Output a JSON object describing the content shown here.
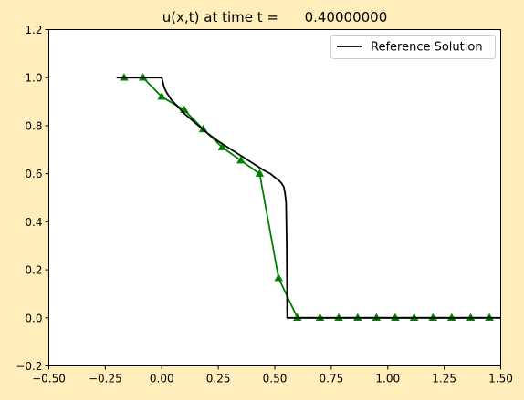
{
  "chart_data": {
    "type": "line",
    "title": "u(x,t) at time t =      0.40000000",
    "xlabel": "",
    "ylabel": "",
    "xlim": [
      -0.5,
      1.5
    ],
    "ylim": [
      -0.2,
      1.2
    ],
    "xticks": [
      -0.5,
      -0.25,
      0.0,
      0.25,
      0.5,
      0.75,
      1.0,
      1.25,
      1.5
    ],
    "xtick_labels": [
      "−0.50",
      "−0.25",
      "0.00",
      "0.25",
      "0.50",
      "0.75",
      "1.00",
      "1.25",
      "1.50"
    ],
    "yticks": [
      -0.2,
      0.0,
      0.2,
      0.4,
      0.6,
      0.8,
      1.0,
      1.2
    ],
    "ytick_labels": [
      "−0.2",
      "0.0",
      "0.2",
      "0.4",
      "0.6",
      "0.8",
      "1.0",
      "1.2"
    ],
    "grid": false,
    "legend_position": "top-right",
    "series": [
      {
        "name": "Reference Solution",
        "color": "#000000",
        "marker": "none",
        "x": [
          -0.2,
          0.0,
          0.005,
          0.01,
          0.02,
          0.04,
          0.07,
          0.1,
          0.15,
          0.2,
          0.25,
          0.3,
          0.35,
          0.4,
          0.45,
          0.48,
          0.5,
          0.52,
          0.53,
          0.54,
          0.545,
          0.55,
          0.553,
          0.555,
          0.6,
          0.8,
          1.0,
          1.2,
          1.5
        ],
        "y": [
          1.0,
          1.0,
          0.98,
          0.96,
          0.94,
          0.91,
          0.88,
          0.85,
          0.81,
          0.77,
          0.735,
          0.705,
          0.675,
          0.645,
          0.615,
          0.6,
          0.585,
          0.57,
          0.56,
          0.545,
          0.52,
          0.48,
          0.3,
          0.0,
          0.0,
          0.0,
          0.0,
          0.0,
          0.0
        ]
      },
      {
        "name": "",
        "color": "#008000",
        "marker": "triangle",
        "x": [
          -0.167,
          -0.083,
          0.0,
          0.1,
          0.183,
          0.267,
          0.35,
          0.433,
          0.517,
          0.6,
          0.7,
          0.783,
          0.867,
          0.95,
          1.033,
          1.117,
          1.2,
          1.283,
          1.367,
          1.45
        ],
        "y": [
          1.0,
          1.0,
          0.92,
          0.865,
          0.785,
          0.71,
          0.655,
          0.6,
          0.165,
          0.0,
          0.0,
          0.0,
          0.0,
          0.0,
          0.0,
          0.0,
          0.0,
          0.0,
          0.0,
          0.0
        ]
      }
    ]
  }
}
